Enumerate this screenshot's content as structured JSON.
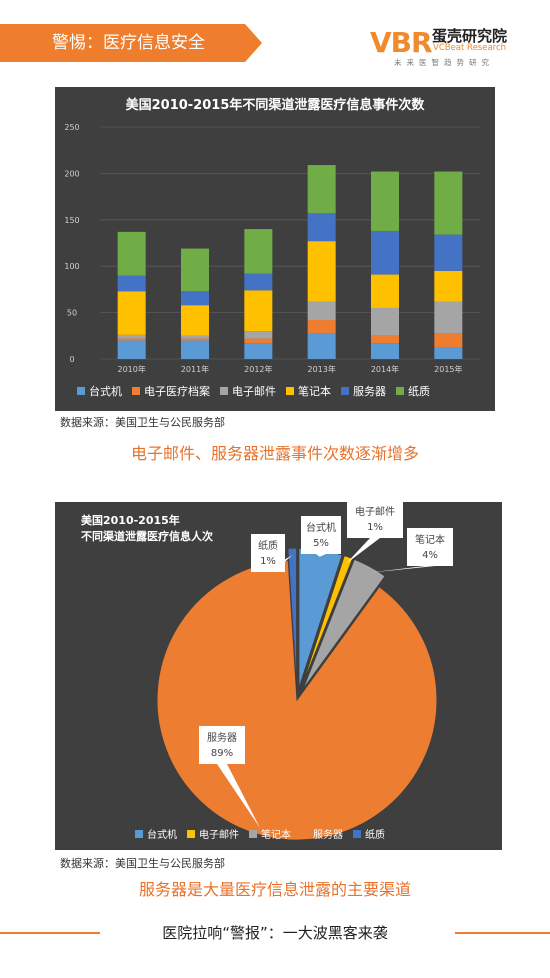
{
  "header": {
    "title": "警惕：医疗信息安全"
  },
  "logo": {
    "mark": "VBR",
    "name_cn": "蛋壳研究院",
    "name_en": "VCBeat Research",
    "slogan": "未来医智趋势研究"
  },
  "colors": {
    "desktop": "#5b9bd5",
    "emr": "#ed7d31",
    "email": "#a5a5a5",
    "laptop": "#ffc000",
    "server": "#4472c4",
    "paper": "#70ad47"
  },
  "chart_data": [
    {
      "type": "bar",
      "stacked": true,
      "title": "美国2010-2015年不同渠道泄露医疗信息事件次数",
      "categories": [
        "2010年",
        "2011年",
        "2012年",
        "2013年",
        "2014年",
        "2015年"
      ],
      "y_ticks": [
        "0",
        "50",
        "100",
        "150",
        "200",
        "250"
      ],
      "ylim": [
        0,
        250
      ],
      "grid": true,
      "legend": "bottom",
      "series": [
        {
          "name": "台式机",
          "color": "#5b9bd5",
          "values": [
            20,
            20,
            17,
            28,
            17,
            12
          ]
        },
        {
          "name": "电子医疗档案",
          "color": "#ed7d31",
          "values": [
            2,
            2,
            5,
            14,
            8,
            16
          ]
        },
        {
          "name": "电子邮件",
          "color": "#a5a5a5",
          "values": [
            4,
            3,
            8,
            20,
            30,
            34
          ]
        },
        {
          "name": "笔记本",
          "color": "#ffc000",
          "values": [
            47,
            33,
            44,
            65,
            36,
            33
          ]
        },
        {
          "name": "服务器",
          "color": "#4472c4",
          "values": [
            17,
            15,
            18,
            30,
            47,
            39
          ]
        },
        {
          "name": "纸质",
          "color": "#70ad47",
          "values": [
            47,
            46,
            48,
            52,
            64,
            68
          ]
        }
      ]
    },
    {
      "type": "pie",
      "title_line1": "美国2010-2015年",
      "title_line2": "不同渠道泄露医疗信息人次",
      "legend": "bottom",
      "slices": [
        {
          "name": "台式机",
          "pct_label": "5%",
          "value": 5,
          "color": "#5b9bd5"
        },
        {
          "name": "电子邮件",
          "pct_label": "1%",
          "value": 1,
          "color": "#ffc000"
        },
        {
          "name": "笔记本",
          "pct_label": "4%",
          "value": 4,
          "color": "#a5a5a5"
        },
        {
          "name": "服务器",
          "pct_label": "89%",
          "value": 89,
          "color": "#ed7d31"
        },
        {
          "name": "纸质",
          "pct_label": "1%",
          "value": 1,
          "color": "#4472c4"
        }
      ]
    }
  ],
  "source1": "数据来源：美国卫生与公民服务部",
  "caption1": "电子邮件、服务器泄露事件次数逐渐增多",
  "source2": "数据来源：美国卫生与公民服务部",
  "caption2": "服务器是大量医疗信息泄露的主要渠道",
  "footer": "医院拉响“警报”：一大波黑客来袭"
}
